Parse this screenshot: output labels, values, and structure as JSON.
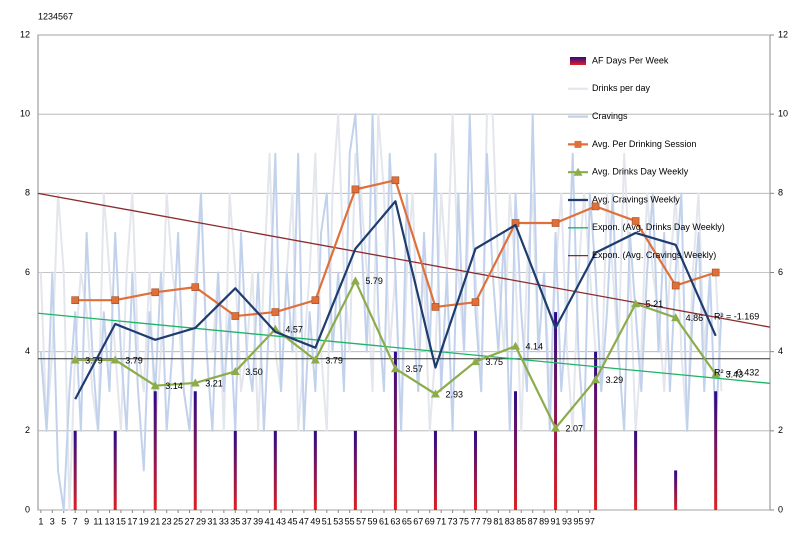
{
  "chart_data": {
    "type": "line",
    "corner_label": "1234567",
    "xlim": [
      0.5,
      128.5
    ],
    "xticks": [
      1,
      3,
      5,
      7,
      9,
      11,
      13,
      15,
      17,
      19,
      21,
      23,
      25,
      27,
      29,
      31,
      33,
      35,
      37,
      39,
      41,
      43,
      45,
      47,
      49,
      51,
      53,
      55,
      57,
      59,
      61,
      63,
      65,
      67,
      69,
      71,
      73,
      75,
      77,
      79,
      81,
      83,
      85,
      87,
      89,
      91,
      93,
      95,
      97
    ],
    "ylim": [
      0,
      12
    ],
    "yticks": [
      0,
      2,
      4,
      6,
      8,
      10,
      12
    ],
    "y2lim": [
      0,
      12
    ],
    "y2ticks": [
      0,
      2,
      4,
      6,
      8,
      10,
      12
    ],
    "grid": true,
    "legend": "upper right",
    "reference_line": 3.82,
    "x": [
      1,
      2,
      3,
      4,
      5,
      6,
      7,
      8,
      9,
      10,
      11,
      12,
      13,
      14,
      15,
      16,
      17,
      18,
      19,
      20,
      21,
      22,
      23,
      24,
      25,
      26,
      27,
      28,
      29,
      30,
      31,
      32,
      33,
      34,
      35,
      36,
      37,
      38,
      39,
      40,
      41,
      42,
      43,
      44,
      45,
      46,
      47,
      48,
      49,
      50,
      51,
      52,
      53,
      54,
      55,
      56,
      57,
      58,
      59,
      60,
      61,
      62,
      63,
      64,
      65,
      66,
      67,
      68,
      69,
      70,
      71,
      72,
      73,
      74,
      75,
      76,
      77,
      78,
      79,
      80,
      81,
      82,
      83,
      84,
      85,
      86,
      87,
      88,
      89,
      90,
      91,
      92,
      93,
      94,
      95,
      96,
      97,
      98,
      99,
      100,
      101,
      102,
      103,
      104,
      105,
      106,
      107,
      108,
      109,
      110,
      111,
      112,
      113,
      114,
      115,
      116,
      117,
      118,
      119,
      120
    ],
    "series": [
      {
        "name": "AF Days Per Week",
        "kind": "bar",
        "color": "#2a0a8a",
        "x": [
          7,
          14,
          21,
          28,
          35,
          42,
          49,
          56,
          63,
          70,
          77,
          84,
          91,
          98,
          105,
          112,
          119
        ],
        "values": [
          2,
          2,
          3,
          3,
          2,
          2,
          2,
          2,
          4,
          2,
          2,
          3,
          5,
          4,
          2,
          1,
          3
        ]
      },
      {
        "name": "Drinks per day",
        "kind": "daily",
        "color": "#e4e6ee",
        "values": [
          6,
          2,
          4,
          8,
          6,
          0,
          4,
          6,
          5,
          3,
          2,
          8,
          6,
          4,
          2,
          6,
          8,
          4,
          3,
          6,
          2,
          4,
          8,
          6,
          5,
          3,
          2,
          6,
          8,
          4,
          4,
          6,
          2,
          8,
          6,
          3,
          4,
          6,
          2,
          6,
          9,
          4,
          3,
          6,
          8,
          2,
          4,
          6,
          9,
          4,
          2,
          8,
          10,
          6,
          4,
          9,
          8,
          6,
          3,
          10,
          8,
          4,
          6,
          2,
          6,
          8,
          4,
          6,
          2,
          4,
          8,
          6,
          10,
          6,
          4,
          8,
          6,
          3,
          10,
          10,
          6,
          4,
          8,
          6,
          2,
          6,
          8,
          4,
          6,
          3,
          6,
          8,
          4,
          2,
          6,
          8,
          6,
          4,
          3,
          8,
          6,
          4,
          9,
          6,
          2,
          4,
          8,
          6,
          5,
          3,
          6,
          8,
          4,
          2,
          6,
          8,
          4,
          6,
          6,
          3
        ]
      },
      {
        "name": "Cravings",
        "kind": "daily",
        "color": "#c3d2ec",
        "values": [
          4,
          2,
          6,
          1,
          0,
          3,
          5,
          2,
          7,
          4,
          2,
          5,
          3,
          7,
          4,
          2,
          6,
          3,
          1,
          5,
          3,
          6,
          2,
          4,
          7,
          3,
          2,
          5,
          8,
          4,
          2,
          6,
          3,
          5,
          2,
          7,
          4,
          3,
          6,
          2,
          5,
          9,
          3,
          6,
          4,
          9,
          2,
          5,
          3,
          7,
          8,
          4,
          6,
          3,
          9,
          10,
          7,
          4,
          10,
          5,
          3,
          9,
          6,
          2,
          8,
          5,
          3,
          7,
          4,
          9,
          3,
          6,
          2,
          8,
          4,
          10,
          5,
          3,
          9,
          6,
          4,
          7,
          2,
          8,
          5,
          3,
          10,
          4,
          6,
          2,
          7,
          3,
          5,
          9,
          4,
          2,
          8,
          6,
          3,
          5,
          8,
          4,
          2,
          7,
          5,
          3,
          6,
          8,
          4,
          7,
          3,
          6,
          8,
          2,
          5,
          7,
          3,
          6,
          2,
          5
        ]
      },
      {
        "name": "Avg. Per Drinking Session",
        "kind": "weekly",
        "marker": "square",
        "color": "#e0703a",
        "x": [
          7,
          14,
          21,
          28,
          35,
          42,
          49,
          56,
          63,
          70,
          77,
          84,
          91,
          98,
          105,
          112,
          119
        ],
        "values": [
          5.3,
          5.3,
          5.5,
          5.63,
          4.9,
          5.0,
          5.3,
          8.1,
          8.33,
          5.13,
          5.25,
          7.25,
          7.25,
          7.67,
          7.3,
          5.67,
          6.0
        ]
      },
      {
        "name": "Avg. Drinks Day Weekly",
        "kind": "weekly",
        "marker": "triangle",
        "color": "#8cac4a",
        "x": [
          7,
          14,
          21,
          28,
          35,
          42,
          49,
          56,
          63,
          70,
          77,
          84,
          91,
          98,
          105,
          112,
          119
        ],
        "values": [
          3.79,
          3.79,
          3.14,
          3.21,
          3.5,
          4.57,
          3.79,
          5.79,
          3.57,
          2.93,
          3.75,
          4.14,
          2.07,
          3.29,
          5.21,
          4.86,
          3.43
        ],
        "value_labels": [
          "3.79",
          "3.79",
          "3.14",
          "3.21",
          "3.50",
          "4.57",
          "3.79",
          "5.79",
          "3.57",
          "2.93",
          "3.75",
          "4.14",
          "2.07",
          "3.29",
          "5.21",
          "4.86",
          "3.43"
        ]
      },
      {
        "name": "Avg. Cravings Weekly",
        "kind": "weekly",
        "marker": "none",
        "color": "#1f3c6e",
        "x": [
          7,
          14,
          21,
          28,
          35,
          42,
          49,
          56,
          63,
          70,
          77,
          84,
          91,
          98,
          105,
          112,
          119
        ],
        "values": [
          2.8,
          4.7,
          4.3,
          4.6,
          5.6,
          4.5,
          4.1,
          6.6,
          7.8,
          3.6,
          6.6,
          7.2,
          4.6,
          6.5,
          7.0,
          6.7,
          4.4
        ]
      },
      {
        "name": "Expon. (Avg. Drinks Day Weekly)",
        "kind": "trend",
        "color": "#1db464",
        "x": [
          0.5,
          128.5
        ],
        "values": [
          4.97,
          3.2
        ],
        "r2_label": "R² = -0.432"
      },
      {
        "name": "Expon. (Avg. Cravings Weekly)",
        "kind": "trend",
        "color": "#8b2a2a",
        "x": [
          0.5,
          128.5
        ],
        "values": [
          8.0,
          4.62
        ],
        "r2_label": "R² = -1.169"
      }
    ]
  }
}
